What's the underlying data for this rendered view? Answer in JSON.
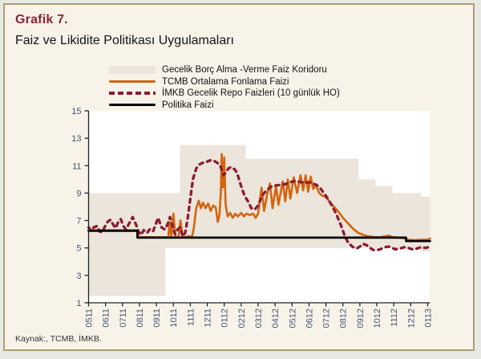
{
  "header": {
    "title": "Grafik 7.",
    "subtitle": "Faiz ve Likidite Politikası Uygulamaları"
  },
  "footer": {
    "source": "Kaynak:, TCMB, İMKB."
  },
  "colors": {
    "card_bg": "#f7f3e9",
    "card_border": "#aca074",
    "plot_bg": "#ffffff",
    "band_fill": "#ebe5db",
    "funding_line": "#d2650f",
    "repo_line": "#8e1b2f",
    "policy_line": "#000000",
    "axis": "#222222",
    "tick_label": "#445577",
    "title_color": "#8b2332"
  },
  "chart_data": {
    "type": "line",
    "title": "Grafik 7.",
    "subtitle": "Faiz ve Likidite Politikası Uygulamaları",
    "legend_position": "top-left",
    "grid": false,
    "ylim": [
      1,
      15
    ],
    "y_ticks": [
      1,
      3,
      5,
      7,
      9,
      11,
      13,
      15
    ],
    "x_tick_labels": [
      "0511",
      "0611",
      "0711",
      "0811",
      "0911",
      "1011",
      "1111",
      "1211",
      "0112",
      "0212",
      "0312",
      "0412",
      "0512",
      "0612",
      "0712",
      "0812",
      "0912",
      "1012",
      "1112",
      "1212",
      "0113"
    ],
    "x_max": 20.14,
    "series": [
      {
        "name": "Gecelik Borç Alma -Verme Faiz Koridoru",
        "kind": "band",
        "color": "#ebe5db",
        "points": [
          [
            0,
            1.5,
            9
          ],
          [
            4.54,
            1.5,
            9
          ],
          [
            4.54,
            5,
            9
          ],
          [
            5.39,
            5,
            9
          ],
          [
            5.39,
            5,
            12.5
          ],
          [
            9.27,
            5,
            12.5
          ],
          [
            9.27,
            5,
            11.5
          ],
          [
            15.93,
            5,
            11.5
          ],
          [
            15.93,
            5,
            10
          ],
          [
            16.93,
            5,
            10
          ],
          [
            16.93,
            5,
            9.5
          ],
          [
            17.92,
            5,
            9.5
          ],
          [
            17.92,
            5,
            9
          ],
          [
            19.6,
            5,
            9
          ],
          [
            19.6,
            4.75,
            8.75
          ],
          [
            20.14,
            4.75,
            8.75
          ]
        ]
      },
      {
        "name": "TCMB Ortalama Fonlama Faizi",
        "kind": "line",
        "color": "#d2650f",
        "width": 2.6,
        "points": [
          [
            0,
            6.3
          ],
          [
            2.85,
            6.3
          ],
          [
            2.95,
            5.78
          ],
          [
            4.7,
            5.78
          ],
          [
            4.78,
            6.9
          ],
          [
            4.88,
            5.8
          ],
          [
            5.0,
            7.5
          ],
          [
            5.12,
            5.8
          ],
          [
            5.3,
            5.78
          ],
          [
            5.42,
            7.0
          ],
          [
            5.55,
            5.78
          ],
          [
            5.95,
            5.85
          ],
          [
            6.1,
            5.8
          ],
          [
            6.2,
            6.4
          ],
          [
            6.35,
            7.9
          ],
          [
            6.5,
            8.45
          ],
          [
            6.62,
            7.9
          ],
          [
            6.75,
            8.3
          ],
          [
            6.9,
            7.9
          ],
          [
            7.05,
            8.25
          ],
          [
            7.2,
            7.7
          ],
          [
            7.35,
            8.1
          ],
          [
            7.5,
            7.95
          ],
          [
            7.62,
            6.9
          ],
          [
            7.72,
            7.4
          ],
          [
            7.8,
            9.0
          ],
          [
            7.85,
            11.85
          ],
          [
            7.92,
            9.4
          ],
          [
            8.0,
            11.6
          ],
          [
            8.08,
            8.2
          ],
          [
            8.2,
            7.3
          ],
          [
            8.35,
            7.55
          ],
          [
            8.5,
            7.2
          ],
          [
            8.65,
            7.5
          ],
          [
            8.8,
            7.3
          ],
          [
            9.0,
            7.55
          ],
          [
            9.15,
            7.3
          ],
          [
            9.3,
            7.5
          ],
          [
            9.5,
            7.4
          ],
          [
            9.7,
            7.5
          ],
          [
            9.85,
            7.2
          ],
          [
            10.0,
            7.5
          ],
          [
            10.2,
            9.4
          ],
          [
            10.35,
            7.7
          ],
          [
            10.55,
            9.0
          ],
          [
            10.7,
            9.7
          ],
          [
            10.85,
            7.9
          ],
          [
            11.05,
            9.5
          ],
          [
            11.2,
            8.15
          ],
          [
            11.45,
            9.85
          ],
          [
            11.6,
            8.4
          ],
          [
            11.75,
            10.0
          ],
          [
            11.9,
            8.6
          ],
          [
            12.1,
            10.15
          ],
          [
            12.3,
            9.0
          ],
          [
            12.5,
            10.3
          ],
          [
            12.65,
            9.2
          ],
          [
            12.8,
            10.3
          ],
          [
            12.95,
            9.1
          ],
          [
            13.1,
            10.2
          ],
          [
            13.25,
            9.3
          ],
          [
            13.4,
            9.6
          ],
          [
            13.6,
            9.0
          ],
          [
            13.8,
            8.8
          ],
          [
            14.0,
            8.7
          ],
          [
            14.2,
            8.4
          ],
          [
            14.4,
            8.1
          ],
          [
            14.7,
            7.7
          ],
          [
            15.0,
            7.2
          ],
          [
            15.3,
            6.8
          ],
          [
            15.6,
            6.4
          ],
          [
            15.9,
            6.1
          ],
          [
            16.2,
            5.95
          ],
          [
            16.5,
            5.85
          ],
          [
            16.8,
            5.8
          ],
          [
            17.2,
            5.78
          ],
          [
            17.5,
            5.85
          ],
          [
            17.7,
            5.9
          ],
          [
            17.9,
            5.8
          ],
          [
            18.3,
            5.75
          ],
          [
            18.7,
            5.7
          ],
          [
            18.85,
            5.6
          ],
          [
            19.3,
            5.57
          ],
          [
            19.7,
            5.6
          ],
          [
            20.0,
            5.6
          ],
          [
            20.14,
            5.68
          ]
        ]
      },
      {
        "name": "İMKB Gecelik Repo Faizleri (10 günlük HO)",
        "kind": "dashed",
        "color": "#8e1b2f",
        "width": 3.3,
        "points": [
          [
            0,
            6.5
          ],
          [
            0.15,
            6.25
          ],
          [
            0.3,
            6.5
          ],
          [
            0.5,
            6.6
          ],
          [
            0.65,
            6.2
          ],
          [
            0.8,
            6.15
          ],
          [
            1.0,
            6.65
          ],
          [
            1.15,
            6.95
          ],
          [
            1.3,
            7.05
          ],
          [
            1.45,
            6.7
          ],
          [
            1.6,
            6.45
          ],
          [
            1.75,
            6.9
          ],
          [
            1.9,
            7.1
          ],
          [
            2.05,
            6.6
          ],
          [
            2.2,
            6.35
          ],
          [
            2.4,
            6.8
          ],
          [
            2.6,
            7.25
          ],
          [
            2.8,
            6.7
          ],
          [
            2.95,
            6.2
          ],
          [
            3.1,
            5.95
          ],
          [
            3.25,
            6.3
          ],
          [
            3.45,
            6.1
          ],
          [
            3.6,
            6.35
          ],
          [
            3.8,
            6.2
          ],
          [
            3.95,
            6.7
          ],
          [
            4.1,
            7.2
          ],
          [
            4.3,
            6.5
          ],
          [
            4.5,
            6.35
          ],
          [
            4.65,
            6.7
          ],
          [
            4.8,
            7.25
          ],
          [
            4.95,
            6.6
          ],
          [
            5.1,
            6.0
          ],
          [
            5.25,
            6.35
          ],
          [
            5.4,
            6.5
          ],
          [
            5.55,
            5.85
          ],
          [
            5.7,
            6.1
          ],
          [
            5.85,
            7.2
          ],
          [
            6.0,
            8.6
          ],
          [
            6.15,
            10.0
          ],
          [
            6.35,
            10.8
          ],
          [
            6.55,
            11.1
          ],
          [
            6.8,
            11.25
          ],
          [
            7.0,
            11.3
          ],
          [
            7.2,
            11.4
          ],
          [
            7.4,
            11.35
          ],
          [
            7.6,
            11.2
          ],
          [
            7.8,
            10.9
          ],
          [
            7.95,
            10.3
          ],
          [
            8.1,
            10.5
          ],
          [
            8.25,
            10.8
          ],
          [
            8.4,
            10.9
          ],
          [
            8.6,
            10.75
          ],
          [
            8.75,
            10.5
          ],
          [
            9.0,
            9.5
          ],
          [
            9.2,
            8.8
          ],
          [
            9.4,
            8.4
          ],
          [
            9.6,
            7.9
          ],
          [
            9.8,
            7.8
          ],
          [
            10.0,
            8.1
          ],
          [
            10.2,
            8.7
          ],
          [
            10.35,
            9.0
          ],
          [
            10.6,
            9.3
          ],
          [
            10.8,
            9.5
          ],
          [
            11.0,
            9.55
          ],
          [
            11.3,
            9.6
          ],
          [
            11.6,
            9.65
          ],
          [
            11.9,
            9.8
          ],
          [
            12.2,
            9.9
          ],
          [
            12.5,
            9.8
          ],
          [
            12.8,
            9.75
          ],
          [
            13.0,
            9.8
          ],
          [
            13.2,
            9.7
          ],
          [
            13.45,
            9.6
          ],
          [
            13.7,
            9.3
          ],
          [
            14.0,
            8.8
          ],
          [
            14.3,
            8.2
          ],
          [
            14.6,
            7.5
          ],
          [
            14.9,
            6.6
          ],
          [
            15.1,
            5.9
          ],
          [
            15.3,
            5.4
          ],
          [
            15.55,
            5.1
          ],
          [
            15.8,
            4.95
          ],
          [
            16.0,
            5.1
          ],
          [
            16.2,
            5.3
          ],
          [
            16.4,
            5.2
          ],
          [
            16.6,
            5.0
          ],
          [
            16.8,
            4.85
          ],
          [
            17.0,
            4.85
          ],
          [
            17.2,
            4.9
          ],
          [
            17.45,
            5.05
          ],
          [
            17.7,
            5.1
          ],
          [
            17.9,
            5.0
          ],
          [
            18.1,
            4.9
          ],
          [
            18.35,
            4.95
          ],
          [
            18.6,
            5.05
          ],
          [
            18.85,
            5.0
          ],
          [
            19.1,
            4.9
          ],
          [
            19.35,
            4.95
          ],
          [
            19.6,
            5.05
          ],
          [
            19.9,
            5.0
          ],
          [
            20.14,
            5.1
          ]
        ]
      },
      {
        "name": "Politika Faizi",
        "kind": "line",
        "color": "#000000",
        "width": 2.7,
        "points": [
          [
            0,
            6.25
          ],
          [
            2.88,
            6.25
          ],
          [
            2.88,
            5.75
          ],
          [
            18.72,
            5.75
          ],
          [
            18.72,
            5.5
          ],
          [
            20.14,
            5.5
          ]
        ]
      }
    ],
    "source": "Kaynak:, TCMB, İMKB."
  }
}
